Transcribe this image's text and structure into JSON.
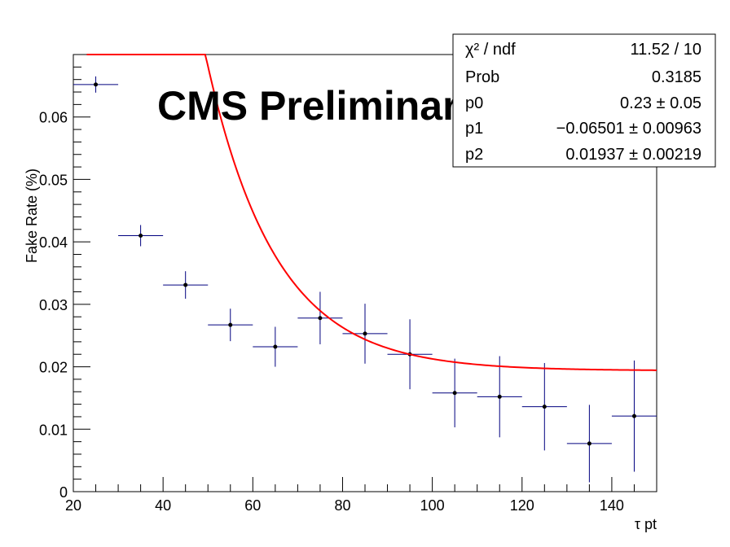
{
  "chart_data": {
    "type": "scatter",
    "title": "",
    "xlabel": "τ pt",
    "ylabel": "Fake Rate (%)",
    "xlim": [
      20,
      150
    ],
    "ylim": [
      0,
      0.07
    ],
    "x_ticks": [
      "20",
      "40",
      "60",
      "80",
      "100",
      "120",
      "140"
    ],
    "y_ticks": [
      "0",
      "0.01",
      "0.02",
      "0.03",
      "0.04",
      "0.05",
      "0.06"
    ],
    "annotation": "CMS Preliminary",
    "series": [
      {
        "type": "errorbar",
        "color": "#00007f",
        "points": [
          {
            "x": 25,
            "xerr": 5,
            "y": 0.0652,
            "yerr": 0.0013
          },
          {
            "x": 35,
            "xerr": 5,
            "y": 0.041,
            "yerr": 0.0017
          },
          {
            "x": 45,
            "xerr": 5,
            "y": 0.0331,
            "yerr": 0.0022
          },
          {
            "x": 55,
            "xerr": 5,
            "y": 0.0267,
            "yerr": 0.0026
          },
          {
            "x": 65,
            "xerr": 5,
            "y": 0.0232,
            "yerr": 0.0032
          },
          {
            "x": 75,
            "xerr": 5,
            "y": 0.0278,
            "yerr": 0.0042
          },
          {
            "x": 85,
            "xerr": 5,
            "y": 0.0253,
            "yerr": 0.0048
          },
          {
            "x": 95,
            "xerr": 5,
            "y": 0.022,
            "yerr": 0.0056
          },
          {
            "x": 105,
            "xerr": 5,
            "y": 0.0158,
            "yerr": 0.0055
          },
          {
            "x": 115,
            "xerr": 5,
            "y": 0.0152,
            "yerr": 0.0065
          },
          {
            "x": 125,
            "xerr": 5,
            "y": 0.0136,
            "yerr": 0.007
          },
          {
            "x": 135,
            "xerr": 5,
            "y": 0.0077,
            "yerr": 0.0062
          },
          {
            "x": 145,
            "xerr": 5,
            "y": 0.0121,
            "yerr": 0.0089
          }
        ]
      },
      {
        "type": "fit",
        "color": "#ff0000",
        "function": "exp(p0 + p1*x) + p2",
        "params": {
          "p0": 0.23,
          "p1": -0.06501,
          "p2": 0.01937
        },
        "x_range": [
          23,
          150
        ]
      }
    ],
    "stats_box": {
      "rows": [
        {
          "label": "χ² / ndf",
          "value": "11.52 / 10"
        },
        {
          "label": "Prob",
          "value": "0.3185"
        },
        {
          "label": "p0",
          "value": "0.23 ± 0.05"
        },
        {
          "label": "p1",
          "value": "−0.06501 ± 0.00963"
        },
        {
          "label": "p2",
          "value": "0.01937 ± 0.00219"
        }
      ]
    }
  }
}
